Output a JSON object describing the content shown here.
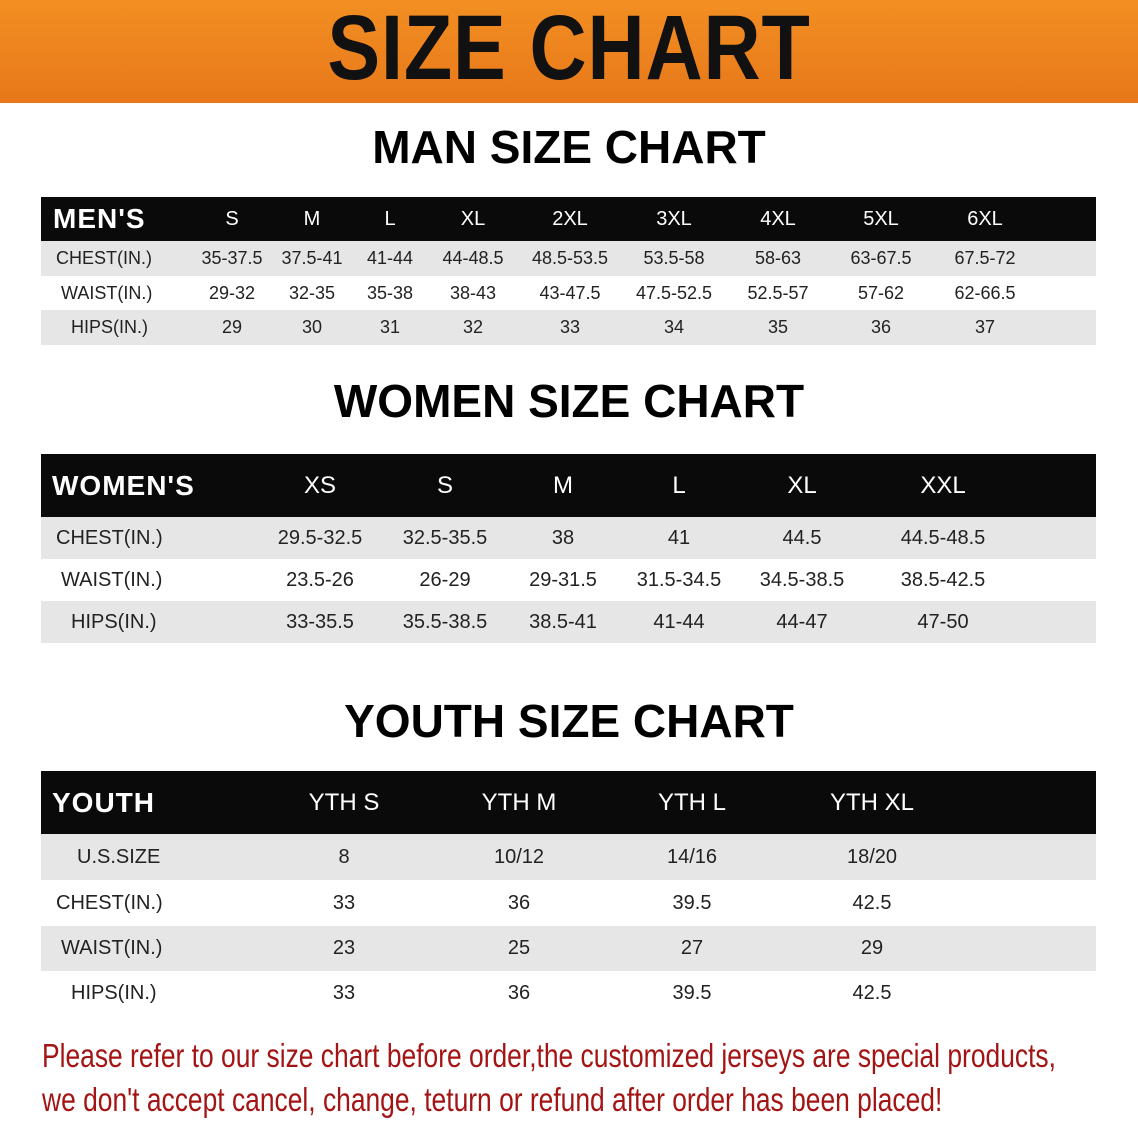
{
  "banner_title": "SIZE CHART",
  "colors": {
    "banner": "#ee8520",
    "header_row": "#0a0a0a",
    "stripe": "#e6e6e6",
    "note": "#a31515"
  },
  "men": {
    "title": "MAN SIZE CHART",
    "header": [
      "MEN'S",
      "S",
      "M",
      "L",
      "XL",
      "2XL",
      "3XL",
      "4XL",
      "5XL",
      "6XL"
    ],
    "rows": [
      [
        "CHEST(IN.)",
        "35-37.5",
        "37.5-41",
        "41-44",
        "44-48.5",
        "48.5-53.5",
        "53.5-58",
        "58-63",
        "63-67.5",
        "67.5-72"
      ],
      [
        "WAIST(IN.)",
        "29-32",
        "32-35",
        "35-38",
        "38-43",
        "43-47.5",
        "47.5-52.5",
        "52.5-57",
        "57-62",
        "62-66.5"
      ],
      [
        "HIPS(IN.)",
        "29",
        "30",
        "31",
        "32",
        "33",
        "34",
        "35",
        "36",
        "37"
      ]
    ]
  },
  "women": {
    "title": "WOMEN SIZE CHART",
    "header": [
      "WOMEN'S",
      "XS",
      "S",
      "M",
      "L",
      "XL",
      "XXL"
    ],
    "rows": [
      [
        "CHEST(IN.)",
        "29.5-32.5",
        "32.5-35.5",
        "38",
        "41",
        "44.5",
        "44.5-48.5"
      ],
      [
        "WAIST(IN.)",
        "23.5-26",
        "26-29",
        "29-31.5",
        "31.5-34.5",
        "34.5-38.5",
        "38.5-42.5"
      ],
      [
        "HIPS(IN.)",
        "33-35.5",
        "35.5-38.5",
        "38.5-41",
        "41-44",
        "44-47",
        "47-50"
      ]
    ]
  },
  "youth": {
    "title": "YOUTH SIZE CHART",
    "header": [
      "YOUTH",
      "YTH S",
      "YTH M",
      "YTH L",
      "YTH XL"
    ],
    "rows": [
      [
        "U.S.SIZE",
        "8",
        "10/12",
        "14/16",
        "18/20"
      ],
      [
        "CHEST(IN.)",
        "33",
        "36",
        "39.5",
        "42.5"
      ],
      [
        "WAIST(IN.)",
        "23",
        "25",
        "27",
        "29"
      ],
      [
        "HIPS(IN.)",
        "33",
        "36",
        "39.5",
        "42.5"
      ]
    ]
  },
  "note": {
    "line1": "Please refer to our size chart before order,the customized jerseys are special products,",
    "line2": "we don't accept cancel, change, teturn or refund after order has been placed!"
  }
}
